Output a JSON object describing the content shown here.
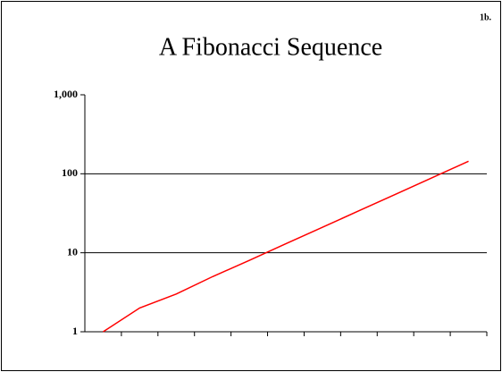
{
  "chart_data": {
    "type": "line",
    "title": "A Fibonacci Sequence",
    "corner_label": "1b.",
    "categories": [
      null,
      null,
      null,
      null,
      null,
      null,
      null,
      null,
      null,
      null,
      null
    ],
    "series": [
      {
        "color": "#ff0000",
        "values": [
          1,
          2,
          3,
          5,
          8,
          13,
          21,
          34,
          55,
          89,
          144
        ]
      }
    ],
    "log_scale": true,
    "ylim": [
      1,
      1000
    ],
    "yticks": [
      1,
      10,
      100,
      {
        "value": 1000,
        "label": "1,000"
      }
    ],
    "grid": true
  }
}
